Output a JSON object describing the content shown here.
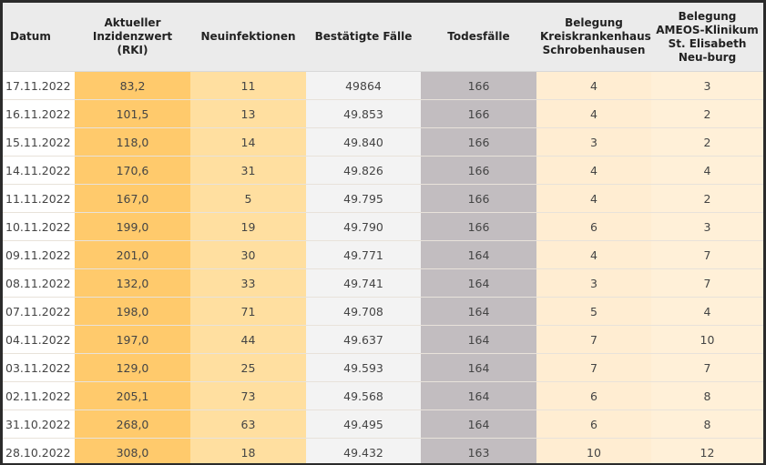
{
  "table": {
    "headers": [
      "Datum",
      "Aktueller Inzidenzwert (RKI)",
      "Neuinfektionen",
      "Bestätigte Fälle",
      "Todesfälle",
      "Belegung Kreiskrankenhaus Schrobenhausen",
      "Belegung AMEOS-Klinikum St. Elisabeth Neu-burg"
    ],
    "rows": [
      [
        "17.11.2022",
        "83,2",
        "11",
        "49864",
        "166",
        "4",
        "3"
      ],
      [
        "16.11.2022",
        "101,5",
        "13",
        "49.853",
        "166",
        "4",
        "2"
      ],
      [
        "15.11.2022",
        "118,0",
        "14",
        "49.840",
        "166",
        "3",
        "2"
      ],
      [
        "14.11.2022",
        "170,6",
        "31",
        "49.826",
        "166",
        "4",
        "4"
      ],
      [
        "11.11.2022",
        "167,0",
        "5",
        "49.795",
        "166",
        "4",
        "2"
      ],
      [
        "10.11.2022",
        "199,0",
        "19",
        "49.790",
        "166",
        "6",
        "3"
      ],
      [
        "09.11.2022",
        "201,0",
        "30",
        "49.771",
        "164",
        "4",
        "7"
      ],
      [
        "08.11.2022",
        "132,0",
        "33",
        "49.741",
        "164",
        "3",
        "7"
      ],
      [
        "07.11.2022",
        "198,0",
        "71",
        "49.708",
        "164",
        "5",
        "4"
      ],
      [
        "04.11.2022",
        "197,0",
        "44",
        "49.637",
        "164",
        "7",
        "10"
      ],
      [
        "03.11.2022",
        "129,0",
        "25",
        "49.593",
        "164",
        "7",
        "7"
      ],
      [
        "02.11.2022",
        "205,1",
        "73",
        "49.568",
        "164",
        "6",
        "8"
      ],
      [
        "31.10.2022",
        "268,0",
        "63",
        "49.495",
        "164",
        "6",
        "8"
      ],
      [
        "28.10.2022",
        "308,0",
        "18",
        "49.432",
        "163",
        "10",
        "12"
      ]
    ]
  },
  "colors": {
    "incidence": "#ffca6c",
    "new_infections": "#ffdfa0",
    "confirmed": "#f3f3f3",
    "deaths": "#c2bdc0",
    "hospital1": "#ffedd2",
    "hospital2": "#fff0d8"
  }
}
